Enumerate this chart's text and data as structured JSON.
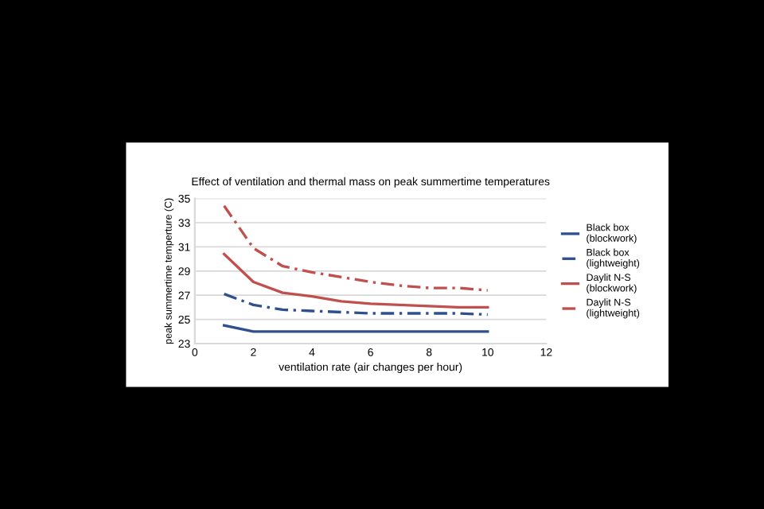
{
  "chart_data": {
    "type": "line",
    "title": "Effect of ventilation and thermal mass on peak summertime temperatures",
    "xlabel": "ventilation rate (air changes per hour)",
    "ylabel": "peak summertime temperture (C)",
    "x": [
      1,
      2,
      3,
      4,
      5,
      6,
      7,
      8,
      9,
      10
    ],
    "series": [
      {
        "name": "Black box (blockwork)",
        "color": "#2f4f8f",
        "line_style": "solid",
        "values": [
          24.5,
          24,
          24,
          24,
          24,
          24,
          24,
          24,
          24,
          24
        ]
      },
      {
        "name": "Black box (lightweight)",
        "color": "#2f4f8f",
        "line_style": "dashed",
        "values": [
          27.1,
          26.2,
          25.8,
          25.7,
          25.6,
          25.5,
          25.5,
          25.5,
          25.5,
          25.4
        ]
      },
      {
        "name": "Daylit N-S (blockwork)",
        "color": "#c0504d",
        "line_style": "solid",
        "values": [
          30.4,
          28.1,
          27.2,
          26.9,
          26.5,
          26.3,
          26.2,
          26.1,
          26.0,
          26.0
        ]
      },
      {
        "name": "Daylit N-S (lightweight)",
        "color": "#c0504d",
        "line_style": "dashed",
        "values": [
          34.4,
          30.9,
          29.4,
          28.9,
          28.5,
          28.1,
          27.8,
          27.6,
          27.6,
          27.4
        ]
      }
    ],
    "xlim": [
      0,
      12
    ],
    "xticks": [
      0,
      2,
      4,
      6,
      8,
      10,
      12
    ],
    "ylim": [
      23,
      35
    ],
    "yticks": [
      23,
      25,
      27,
      29,
      31,
      33,
      35
    ],
    "grid": "y",
    "legend": "right",
    "marker": "none"
  }
}
